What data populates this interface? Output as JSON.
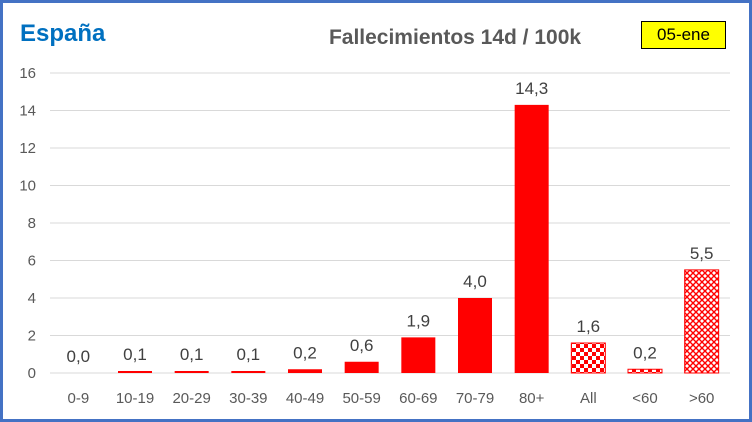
{
  "header": {
    "region": "España",
    "title": "Fallecimientos 14d / 100k",
    "date": "05-ene"
  },
  "colors": {
    "bar": "#ff0000",
    "frame": "#4472c4",
    "region": "#0070c0",
    "badge": "#ffff00",
    "grid": "#d9d9d9"
  },
  "chart_data": {
    "type": "bar",
    "title": "Fallecimientos 14d / 100k",
    "xlabel": "",
    "ylabel": "",
    "categories": [
      "0-9",
      "10-19",
      "20-29",
      "30-39",
      "40-49",
      "50-59",
      "60-69",
      "70-79",
      "80+",
      "All",
      "<60",
      ">60"
    ],
    "values": [
      0.0,
      0.1,
      0.1,
      0.1,
      0.2,
      0.6,
      1.9,
      4.0,
      14.3,
      1.6,
      0.2,
      5.5
    ],
    "value_labels": [
      "0,0",
      "0,1",
      "0,1",
      "0,1",
      "0,2",
      "0,6",
      "1,9",
      "4,0",
      "14,3",
      "1,6",
      "0,2",
      "5,5"
    ],
    "bar_styles": [
      "solid",
      "solid",
      "solid",
      "solid",
      "solid",
      "solid",
      "solid",
      "solid",
      "solid",
      "checker",
      "checker",
      "crosshatch"
    ],
    "ylim": [
      0,
      16
    ],
    "yticks": [
      0,
      2,
      4,
      6,
      8,
      10,
      12,
      14,
      16
    ],
    "grid": true,
    "legend": "none"
  }
}
